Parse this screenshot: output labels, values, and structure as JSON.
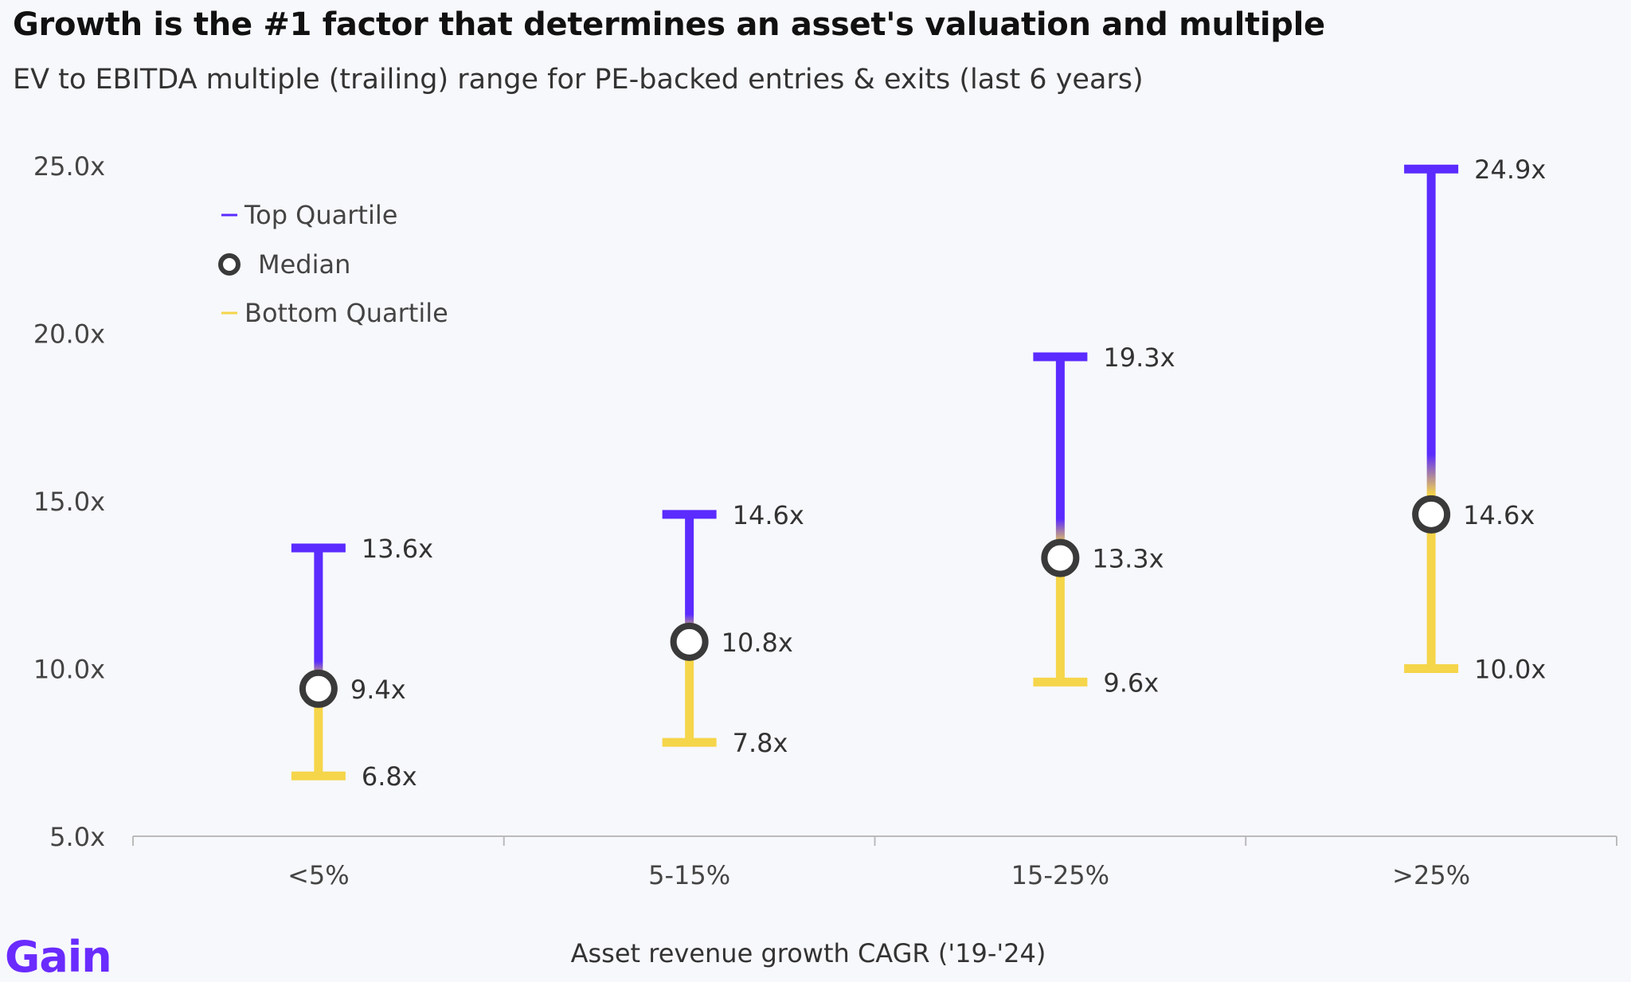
{
  "header": {
    "title": "Growth is the #1 factor that determines an asset's valuation and multiple",
    "subtitle": "EV to EBITDA multiple (trailing) range for PE-backed entries & exits (last 6 years)"
  },
  "brand": {
    "logo_text": "Gain"
  },
  "colors": {
    "top_quartile": "#5b2bff",
    "bottom_quartile": "#f5d54a",
    "median": "#3a3a3a",
    "axis": "#bbbbbb",
    "label": "#333333"
  },
  "chart_data": {
    "type": "range",
    "title": "",
    "xlabel": "Asset revenue growth CAGR ('19-'24)",
    "ylabel": "",
    "ylim": [
      5.0,
      25.0
    ],
    "yticks": [
      5.0,
      10.0,
      15.0,
      20.0,
      25.0
    ],
    "ytick_labels": [
      "5.0x",
      "10.0x",
      "15.0x",
      "20.0x",
      "25.0x"
    ],
    "categories": [
      "<5%",
      "5-15%",
      "15-25%",
      ">25%"
    ],
    "legend": {
      "position": "top-left",
      "items": [
        "Top Quartile",
        "Median",
        "Bottom Quartile"
      ]
    },
    "series": [
      {
        "name": "Top Quartile",
        "values": [
          13.6,
          14.6,
          19.3,
          24.9
        ],
        "labels": [
          "13.6x",
          "14.6x",
          "19.3x",
          "24.9x"
        ]
      },
      {
        "name": "Median",
        "values": [
          9.4,
          10.8,
          13.3,
          14.6
        ],
        "labels": [
          "9.4x",
          "10.8x",
          "13.3x",
          "14.6x"
        ]
      },
      {
        "name": "Bottom Quartile",
        "values": [
          6.8,
          7.8,
          9.6,
          10.0
        ],
        "labels": [
          "6.8x",
          "7.8x",
          "9.6x",
          "10.0x"
        ]
      }
    ]
  }
}
